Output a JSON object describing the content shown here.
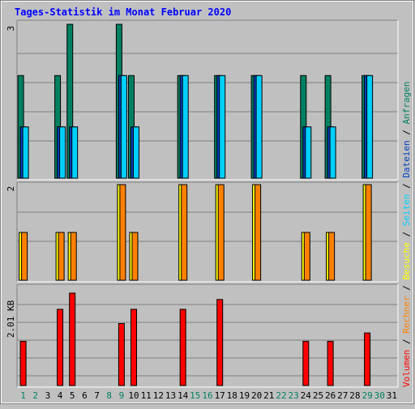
{
  "chart_data": {
    "type": "bar",
    "title": "Tages-Statistik im Monat Februar 2020",
    "days": [
      "1",
      "2",
      "3",
      "4",
      "5",
      "6",
      "7",
      "8",
      "9",
      "10",
      "11",
      "12",
      "13",
      "14",
      "15",
      "16",
      "17",
      "18",
      "19",
      "20",
      "21",
      "22",
      "23",
      "24",
      "25",
      "26",
      "27",
      "28",
      "29",
      "30",
      "31"
    ],
    "weekend_days": [
      "1",
      "2",
      "8",
      "9",
      "15",
      "16",
      "22",
      "23",
      "29",
      "30"
    ],
    "panels": [
      {
        "id": "requests",
        "ylabel": "3",
        "ymax": 3,
        "series": [
          {
            "name": "Anfragen",
            "color": "#008060",
            "values": [
              2,
              0,
              0,
              2,
              3,
              0,
              0,
              0,
              3,
              2,
              0,
              0,
              0,
              2,
              0,
              0,
              2,
              0,
              0,
              2,
              0,
              0,
              0,
              2,
              0,
              2,
              0,
              0,
              2,
              0,
              0
            ]
          },
          {
            "name": "Dateien",
            "color": "#0040c0",
            "values": [
              1,
              0,
              0,
              1,
              1,
              0,
              0,
              0,
              2,
              1,
              0,
              0,
              0,
              2,
              0,
              0,
              2,
              0,
              0,
              2,
              0,
              0,
              0,
              1,
              0,
              1,
              0,
              0,
              2,
              0,
              0
            ]
          },
          {
            "name": "Seiten",
            "color": "#00d0ff",
            "values": [
              1,
              0,
              0,
              1,
              1,
              0,
              0,
              0,
              2,
              1,
              0,
              0,
              0,
              2,
              0,
              0,
              2,
              0,
              0,
              2,
              0,
              0,
              0,
              1,
              0,
              1,
              0,
              0,
              2,
              0,
              0
            ]
          }
        ]
      },
      {
        "id": "visits",
        "ylabel": "2",
        "ymax": 2,
        "series": [
          {
            "name": "Besuche",
            "color": "#ffff00",
            "values": [
              1,
              0,
              0,
              1,
              1,
              0,
              0,
              0,
              2,
              1,
              0,
              0,
              0,
              2,
              0,
              0,
              2,
              0,
              0,
              2,
              0,
              0,
              0,
              1,
              0,
              1,
              0,
              0,
              2,
              0,
              0
            ]
          },
          {
            "name": "Rechner",
            "color": "#ff8000",
            "values": [
              1,
              0,
              0,
              1,
              1,
              0,
              0,
              0,
              2,
              1,
              0,
              0,
              0,
              2,
              0,
              0,
              2,
              0,
              0,
              2,
              0,
              0,
              0,
              1,
              0,
              1,
              0,
              0,
              2,
              0,
              0
            ]
          }
        ]
      },
      {
        "id": "volume",
        "ylabel": "2.01 KB",
        "ymax": 2.01,
        "series": [
          {
            "name": "Volumen",
            "color": "#ff0000",
            "values": [
              0.9,
              0,
              0,
              1.55,
              1.88,
              0,
              0,
              0,
              1.26,
              1.55,
              0,
              0,
              0,
              1.55,
              0,
              0,
              1.75,
              0,
              0,
              0,
              0,
              0,
              0,
              0.9,
              0,
              0.9,
              0,
              0,
              1.07,
              0,
              0
            ]
          }
        ]
      }
    ],
    "legend_separator": " / "
  }
}
